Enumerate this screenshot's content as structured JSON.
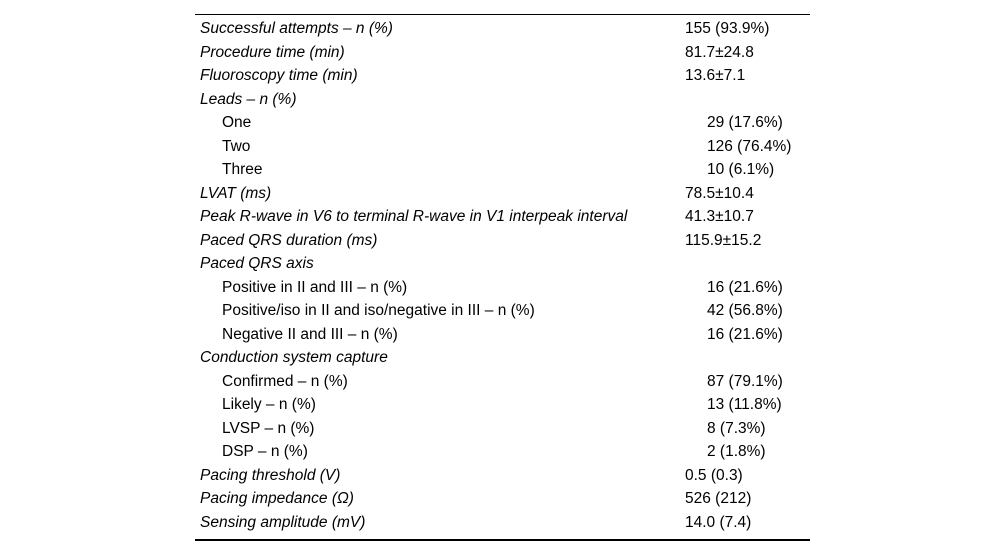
{
  "table": {
    "name": "procedural-outcomes-table",
    "rows": [
      {
        "label": "Successful attempts – n (%)",
        "value": "155 (93.9%)",
        "sub": false
      },
      {
        "label": "Procedure time (min)",
        "value": "81.7±24.8",
        "sub": false
      },
      {
        "label": "Fluoroscopy time (min)",
        "value": "13.6±7.1",
        "sub": false
      },
      {
        "label": "Leads – n (%)",
        "value": "",
        "sub": false
      },
      {
        "label": "One",
        "value": "29 (17.6%)",
        "sub": true
      },
      {
        "label": "Two",
        "value": "126 (76.4%)",
        "sub": true
      },
      {
        "label": "Three",
        "value": "10 (6.1%)",
        "sub": true
      },
      {
        "label": "LVAT (ms)",
        "value": "78.5±10.4",
        "sub": false
      },
      {
        "label": "Peak R-wave in V6 to terminal R-wave in V1 interpeak interval",
        "value": "41.3±10.7",
        "sub": false
      },
      {
        "label": "Paced QRS duration (ms)",
        "value": "115.9±15.2",
        "sub": false
      },
      {
        "label": "Paced QRS axis",
        "value": "",
        "sub": false
      },
      {
        "label": "Positive in II and III – n (%)",
        "value": "16 (21.6%)",
        "sub": true
      },
      {
        "label": "Positive/iso in II and iso/negative in III – n (%)",
        "value": "42 (56.8%)",
        "sub": true
      },
      {
        "label": "Negative II and III – n (%)",
        "value": "16 (21.6%)",
        "sub": true
      },
      {
        "label": "Conduction system capture",
        "value": "",
        "sub": false
      },
      {
        "label": "Confirmed – n (%)",
        "value": "87 (79.1%)",
        "sub": true
      },
      {
        "label": "Likely – n (%)",
        "value": "13 (11.8%)",
        "sub": true
      },
      {
        "label": "LVSP – n (%)",
        "value": "8 (7.3%)",
        "sub": true
      },
      {
        "label": "DSP – n (%)",
        "value": "2 (1.8%)",
        "sub": true
      },
      {
        "label": "Pacing threshold (V)",
        "value": "0.5 (0.3)",
        "sub": false
      },
      {
        "label": "Pacing impedance (Ω)",
        "value": "526 (212)",
        "sub": false
      },
      {
        "label": "Sensing amplitude (mV)",
        "value": "14.0 (7.4)",
        "sub": false
      }
    ],
    "colors": {
      "text": "#000000",
      "background": "#ffffff",
      "rule": "#000000"
    }
  }
}
